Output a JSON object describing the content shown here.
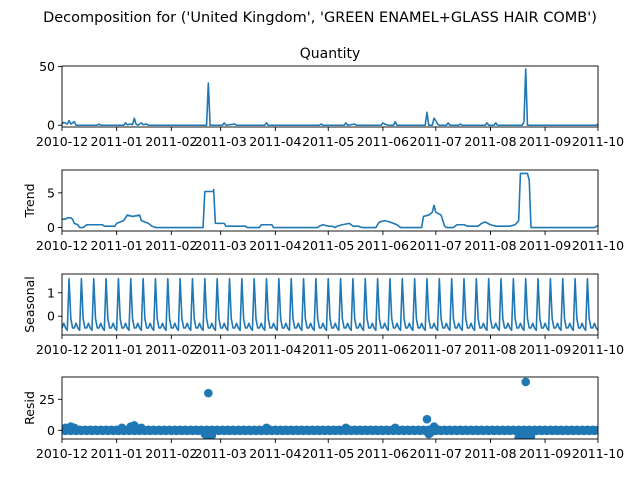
{
  "suptitle": "Decomposition for ('United Kingdom', 'GREEN ENAMEL+GLASS HAIR COMB')",
  "colors": {
    "line": "#1f77b4",
    "axis": "#000000",
    "background": "#ffffff"
  },
  "chart_data": [
    {
      "type": "line",
      "title": "Quantity",
      "ylabel": "",
      "ylim": [
        -1.5,
        50.5
      ],
      "yticks": [
        0,
        50
      ],
      "xlim": [
        "2010-12-01",
        "2011-10-01"
      ],
      "xticks": [
        "2010-12",
        "2011-01",
        "2011-02",
        "2011-03",
        "2011-04",
        "2011-05",
        "2011-06",
        "2011-07",
        "2011-08",
        "2011-09",
        "2011-10"
      ],
      "baseline": 0,
      "series": [
        {
          "points": [
            [
              "2010-12-01",
              1
            ],
            [
              "2010-12-02",
              2.5
            ],
            [
              "2010-12-04",
              1
            ],
            [
              "2010-12-05",
              4
            ],
            [
              "2010-12-06",
              1
            ],
            [
              "2010-12-08",
              3
            ],
            [
              "2010-12-09",
              0
            ],
            [
              "2010-12-21",
              0
            ],
            [
              "2010-12-22",
              1
            ],
            [
              "2010-12-23",
              0
            ],
            [
              "2011-01-05",
              0
            ],
            [
              "2011-01-06",
              2
            ],
            [
              "2011-01-07",
              0.5
            ],
            [
              "2011-01-09",
              1
            ],
            [
              "2011-01-10",
              0.5
            ],
            [
              "2011-01-11",
              6
            ],
            [
              "2011-01-12",
              1
            ],
            [
              "2011-01-13",
              0
            ],
            [
              "2011-01-15",
              2
            ],
            [
              "2011-01-16",
              0.5
            ],
            [
              "2011-01-18",
              1
            ],
            [
              "2011-01-19",
              0
            ],
            [
              "2011-02-21",
              0
            ],
            [
              "2011-02-22",
              36
            ],
            [
              "2011-02-23",
              0
            ],
            [
              "2011-03-02",
              0
            ],
            [
              "2011-03-03",
              2
            ],
            [
              "2011-03-04",
              0
            ],
            [
              "2011-03-09",
              1
            ],
            [
              "2011-03-10",
              0
            ],
            [
              "2011-03-26",
              0
            ],
            [
              "2011-03-27",
              2
            ],
            [
              "2011-03-28",
              0
            ],
            [
              "2011-04-26",
              0
            ],
            [
              "2011-04-27",
              1
            ],
            [
              "2011-04-28",
              0
            ],
            [
              "2011-05-10",
              0
            ],
            [
              "2011-05-11",
              2
            ],
            [
              "2011-05-12",
              0
            ],
            [
              "2011-05-16",
              1
            ],
            [
              "2011-05-17",
              0
            ],
            [
              "2011-05-31",
              0
            ],
            [
              "2011-06-01",
              2
            ],
            [
              "2011-06-02",
              1
            ],
            [
              "2011-06-04",
              0
            ],
            [
              "2011-06-07",
              0
            ],
            [
              "2011-06-08",
              3
            ],
            [
              "2011-06-09",
              0
            ],
            [
              "2011-06-25",
              0
            ],
            [
              "2011-06-26",
              11
            ],
            [
              "2011-06-27",
              0
            ],
            [
              "2011-06-29",
              0
            ],
            [
              "2011-06-30",
              6
            ],
            [
              "2011-07-01",
              4
            ],
            [
              "2011-07-02",
              1
            ],
            [
              "2011-07-03",
              0
            ],
            [
              "2011-07-07",
              0
            ],
            [
              "2011-07-08",
              2
            ],
            [
              "2011-07-09",
              0
            ],
            [
              "2011-07-14",
              0
            ],
            [
              "2011-07-15",
              1
            ],
            [
              "2011-07-16",
              0
            ],
            [
              "2011-07-29",
              0
            ],
            [
              "2011-07-30",
              2
            ],
            [
              "2011-07-31",
              0
            ],
            [
              "2011-08-03",
              0
            ],
            [
              "2011-08-04",
              2
            ],
            [
              "2011-08-05",
              0
            ],
            [
              "2011-08-19",
              0
            ],
            [
              "2011-08-20",
              3
            ],
            [
              "2011-08-21",
              48
            ],
            [
              "2011-08-22",
              0
            ],
            [
              "2011-09-30",
              0
            ],
            [
              "2011-10-01",
              1
            ]
          ]
        }
      ]
    },
    {
      "type": "line",
      "title": "",
      "ylabel": "Trend",
      "ylim": [
        -0.5,
        8.3
      ],
      "yticks": [
        0,
        5
      ],
      "xlim": [
        "2010-12-01",
        "2011-10-01"
      ],
      "xticks": [
        "2010-12",
        "2011-01",
        "2011-02",
        "2011-03",
        "2011-04",
        "2011-05",
        "2011-06",
        "2011-07",
        "2011-08",
        "2011-09",
        "2011-10"
      ],
      "series": [
        {
          "points": [
            [
              "2010-12-01",
              1.2
            ],
            [
              "2010-12-03",
              1.2
            ],
            [
              "2010-12-04",
              1.4
            ],
            [
              "2010-12-06",
              1.4
            ],
            [
              "2010-12-07",
              1.2
            ],
            [
              "2010-12-08",
              0.6
            ],
            [
              "2010-12-10",
              0.4
            ],
            [
              "2010-12-11",
              0
            ],
            [
              "2010-12-13",
              0
            ],
            [
              "2010-12-14",
              0.2
            ],
            [
              "2010-12-15",
              0.4
            ],
            [
              "2010-12-24",
              0.4
            ],
            [
              "2010-12-25",
              0.2
            ],
            [
              "2010-12-31",
              0.2
            ],
            [
              "2011-01-01",
              0.6
            ],
            [
              "2011-01-03",
              0.8
            ],
            [
              "2011-01-05",
              1.0
            ],
            [
              "2011-01-07",
              1.8
            ],
            [
              "2011-01-10",
              1.6
            ],
            [
              "2011-01-14",
              1.8
            ],
            [
              "2011-01-15",
              1.0
            ],
            [
              "2011-01-17",
              0.8
            ],
            [
              "2011-01-19",
              0.6
            ],
            [
              "2011-01-21",
              0.2
            ],
            [
              "2011-01-23",
              0
            ],
            [
              "2011-02-19",
              0
            ],
            [
              "2011-02-20",
              5.2
            ],
            [
              "2011-02-25",
              5.2
            ],
            [
              "2011-02-25",
              5.5
            ],
            [
              "2011-02-26",
              0.6
            ],
            [
              "2011-03-03",
              0.6
            ],
            [
              "2011-03-04",
              0.2
            ],
            [
              "2011-03-15",
              0.2
            ],
            [
              "2011-03-16",
              0
            ],
            [
              "2011-03-23",
              0
            ],
            [
              "2011-03-24",
              0.4
            ],
            [
              "2011-03-30",
              0.4
            ],
            [
              "2011-03-31",
              0
            ],
            [
              "2011-04-25",
              0
            ],
            [
              "2011-04-26",
              0.2
            ],
            [
              "2011-04-28",
              0.4
            ],
            [
              "2011-05-01",
              0.2
            ],
            [
              "2011-05-03",
              0.2
            ],
            [
              "2011-05-05",
              0
            ],
            [
              "2011-05-06",
              0.2
            ],
            [
              "2011-05-09",
              0.4
            ],
            [
              "2011-05-13",
              0.6
            ],
            [
              "2011-05-15",
              0.2
            ],
            [
              "2011-05-18",
              0.2
            ],
            [
              "2011-05-20",
              0
            ],
            [
              "2011-05-28",
              0
            ],
            [
              "2011-05-30",
              0.8
            ],
            [
              "2011-06-02",
              1.0
            ],
            [
              "2011-06-05",
              0.8
            ],
            [
              "2011-06-07",
              0.6
            ],
            [
              "2011-06-09",
              0.4
            ],
            [
              "2011-06-11",
              0
            ],
            [
              "2011-06-23",
              0
            ],
            [
              "2011-06-24",
              1.6
            ],
            [
              "2011-06-27",
              1.8
            ],
            [
              "2011-06-29",
              2.2
            ],
            [
              "2011-06-30",
              3.2
            ],
            [
              "2011-07-01",
              2.2
            ],
            [
              "2011-07-04",
              1.8
            ],
            [
              "2011-07-06",
              0.2
            ],
            [
              "2011-07-07",
              0
            ],
            [
              "2011-07-11",
              0
            ],
            [
              "2011-07-13",
              0.4
            ],
            [
              "2011-07-17",
              0.4
            ],
            [
              "2011-07-19",
              0.2
            ],
            [
              "2011-07-25",
              0.2
            ],
            [
              "2011-07-27",
              0.6
            ],
            [
              "2011-07-29",
              0.8
            ],
            [
              "2011-08-01",
              0.4
            ],
            [
              "2011-08-04",
              0.2
            ],
            [
              "2011-08-12",
              0.2
            ],
            [
              "2011-08-15",
              0.4
            ],
            [
              "2011-08-17",
              1.0
            ],
            [
              "2011-08-18",
              7.8
            ],
            [
              "2011-08-22",
              7.8
            ],
            [
              "2011-08-23",
              6.8
            ],
            [
              "2011-08-24",
              0
            ],
            [
              "2011-09-29",
              0
            ],
            [
              "2011-10-01",
              0.3
            ]
          ]
        }
      ]
    },
    {
      "type": "line",
      "title": "",
      "ylabel": "Seasonal",
      "ylim": [
        -0.8,
        1.8
      ],
      "yticks": [
        0,
        1
      ],
      "xlim": [
        "2010-12-01",
        "2011-10-01"
      ],
      "xticks": [
        "2010-12",
        "2011-01",
        "2011-02",
        "2011-03",
        "2011-04",
        "2011-05",
        "2011-06",
        "2011-07",
        "2011-08",
        "2011-09",
        "2011-10"
      ],
      "seasonal_period_days": 7,
      "seasonal_pattern": [
        1.6,
        -0.1,
        -0.5,
        -0.5,
        -0.3,
        -0.5,
        -0.6
      ],
      "first_peak": "2010-12-05"
    },
    {
      "type": "scatter",
      "title": "",
      "ylabel": "Resid",
      "ylim": [
        -7,
        43
      ],
      "yticks": [
        0,
        25
      ],
      "xlim": [
        "2010-12-01",
        "2011-10-01"
      ],
      "xticks": [
        "2010-12",
        "2011-01",
        "2011-02",
        "2011-03",
        "2011-04",
        "2011-05",
        "2011-06",
        "2011-07",
        "2011-08",
        "2011-09",
        "2011-10"
      ],
      "baseline": 0,
      "points": [
        [
          "2010-12-03",
          2
        ],
        [
          "2010-12-06",
          3
        ],
        [
          "2010-12-08",
          2
        ],
        [
          "2011-01-04",
          2
        ],
        [
          "2011-01-09",
          3
        ],
        [
          "2011-01-11",
          4
        ],
        [
          "2011-01-15",
          2
        ],
        [
          "2011-02-20",
          -3
        ],
        [
          "2011-02-21",
          -4
        ],
        [
          "2011-02-22",
          30
        ],
        [
          "2011-02-23",
          -4
        ],
        [
          "2011-02-24",
          -4
        ],
        [
          "2011-03-27",
          2
        ],
        [
          "2011-05-11",
          2
        ],
        [
          "2011-06-08",
          2
        ],
        [
          "2011-06-26",
          9
        ],
        [
          "2011-06-27",
          -3
        ],
        [
          "2011-06-28",
          -2
        ],
        [
          "2011-06-30",
          3
        ],
        [
          "2011-07-01",
          1
        ],
        [
          "2011-08-17",
          -6
        ],
        [
          "2011-08-18",
          -6
        ],
        [
          "2011-08-19",
          -5
        ],
        [
          "2011-08-20",
          -4
        ],
        [
          "2011-08-21",
          39
        ],
        [
          "2011-08-22",
          -6
        ],
        [
          "2011-08-23",
          -6
        ],
        [
          "2011-08-24",
          -5
        ]
      ]
    }
  ]
}
